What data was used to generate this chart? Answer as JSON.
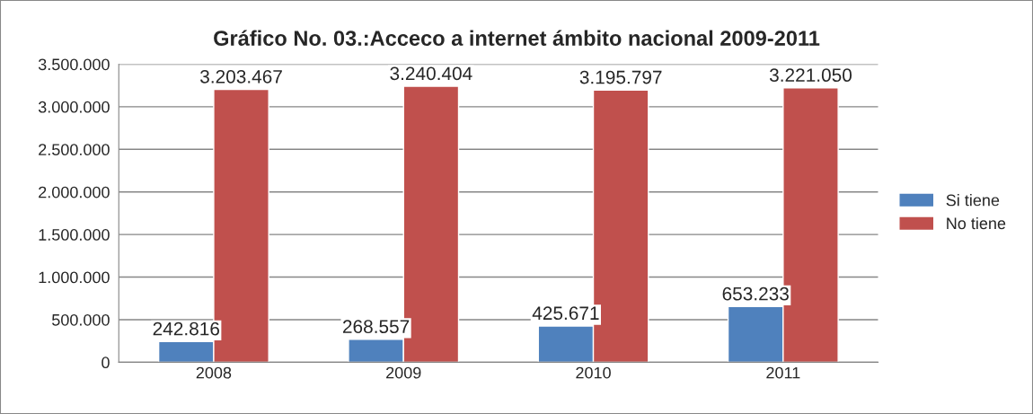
{
  "chart_data": {
    "type": "bar",
    "title": "Gráfico No. 03.:Acceco a internet ámbito nacional 2009-2011",
    "categories": [
      "2008",
      "2009",
      "2010",
      "2011"
    ],
    "series": [
      {
        "name": "Si tiene",
        "color": "#4f81bd",
        "values": [
          242816,
          268557,
          425671,
          653233
        ],
        "value_labels": [
          "242.816",
          "268.557",
          "425.671",
          "653.233"
        ]
      },
      {
        "name": "No tiene",
        "color": "#c0504d",
        "values": [
          3203467,
          3240404,
          3195797,
          3221050
        ],
        "value_labels": [
          "3.203.467",
          "3.240.404",
          "3.195.797",
          "3.221.050"
        ]
      }
    ],
    "ylim": [
      0,
      3500000
    ],
    "yticks": [
      0,
      {
        "value": 500000,
        "label": "500.000"
      },
      {
        "value": 1000000,
        "label": "1.000.000"
      },
      {
        "value": 1500000,
        "label": "1.500.000"
      },
      {
        "value": 2000000,
        "label": "2.000.000"
      },
      {
        "value": 2500000,
        "label": "2.500.000"
      },
      {
        "value": 3000000,
        "label": "3.000.000"
      },
      {
        "value": 3500000,
        "label": "3.500.000"
      }
    ],
    "grid": "y",
    "legend": "right"
  }
}
